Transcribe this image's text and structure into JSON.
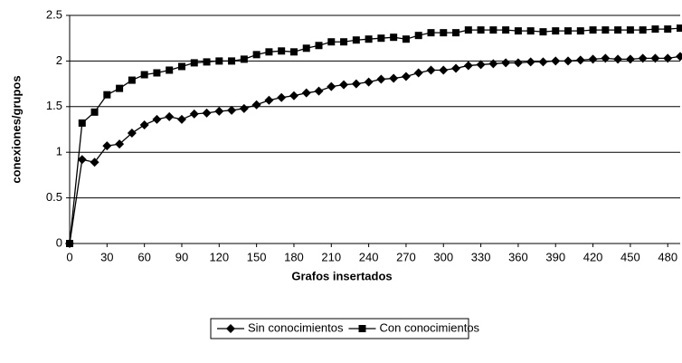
{
  "chart_data": {
    "type": "line",
    "x_label": "Grafos insertados",
    "y_label": "conexiones/grupos",
    "x": [
      0,
      10,
      20,
      30,
      40,
      50,
      60,
      70,
      80,
      90,
      100,
      110,
      120,
      130,
      140,
      150,
      160,
      170,
      180,
      190,
      200,
      210,
      220,
      230,
      240,
      250,
      260,
      270,
      280,
      290,
      300,
      310,
      320,
      330,
      340,
      350,
      360,
      370,
      380,
      390,
      400,
      410,
      420,
      430,
      440,
      450,
      460,
      470,
      480,
      490
    ],
    "series": [
      {
        "name": "Sin conocimientos",
        "color": "#000000",
        "marker": "diamond",
        "values": [
          0,
          0.92,
          0.89,
          1.07,
          1.09,
          1.21,
          1.3,
          1.36,
          1.39,
          1.36,
          1.42,
          1.43,
          1.45,
          1.46,
          1.48,
          1.52,
          1.57,
          1.6,
          1.62,
          1.65,
          1.67,
          1.72,
          1.74,
          1.75,
          1.77,
          1.8,
          1.81,
          1.83,
          1.87,
          1.9,
          1.9,
          1.92,
          1.95,
          1.96,
          1.97,
          1.98,
          1.98,
          1.99,
          1.99,
          2.0,
          2.0,
          2.01,
          2.02,
          2.03,
          2.02,
          2.02,
          2.03,
          2.03,
          2.03,
          2.05
        ]
      },
      {
        "name": "Con conocimientos",
        "color": "#000000",
        "marker": "square",
        "values": [
          0,
          1.32,
          1.44,
          1.63,
          1.7,
          1.79,
          1.85,
          1.87,
          1.9,
          1.94,
          1.98,
          1.99,
          2.0,
          2.0,
          2.02,
          2.07,
          2.1,
          2.11,
          2.1,
          2.14,
          2.17,
          2.21,
          2.21,
          2.23,
          2.24,
          2.25,
          2.26,
          2.24,
          2.28,
          2.31,
          2.31,
          2.31,
          2.34,
          2.34,
          2.34,
          2.34,
          2.33,
          2.33,
          2.32,
          2.33,
          2.33,
          2.33,
          2.34,
          2.34,
          2.34,
          2.34,
          2.34,
          2.35,
          2.35,
          2.36
        ]
      }
    ],
    "xlim": [
      0,
      490
    ],
    "xticks": [
      0,
      30,
      60,
      90,
      120,
      150,
      180,
      210,
      240,
      270,
      300,
      330,
      360,
      390,
      420,
      450,
      480
    ],
    "ylim": [
      0,
      2.5
    ],
    "yticks": [
      0,
      0.5,
      1,
      1.5,
      2,
      2.5
    ],
    "grid": true,
    "legend": "bottom"
  }
}
